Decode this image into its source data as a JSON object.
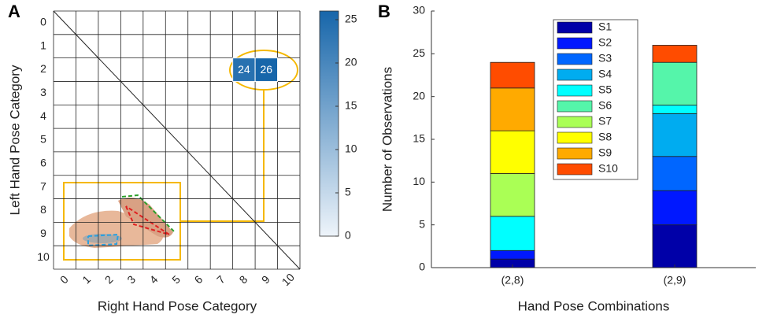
{
  "chart_data": [
    {
      "type": "heatmap",
      "panel_label": "A",
      "x_label": "Right Hand Pose Category",
      "y_label": "Left Hand Pose Category",
      "x": [
        8,
        9
      ],
      "y": [
        2,
        2
      ],
      "values": [
        24,
        26
      ],
      "xlim": [
        -0.5,
        10.5
      ],
      "ylim": [
        10.5,
        -0.5
      ],
      "xticks": [
        0,
        1,
        2,
        3,
        4,
        5,
        6,
        7,
        8,
        9,
        10
      ],
      "yticks": [
        0,
        1,
        2,
        3,
        4,
        5,
        6,
        7,
        8,
        9,
        10
      ],
      "clim": [
        0,
        26
      ],
      "cticks": [
        0,
        5,
        10,
        15,
        20,
        25
      ],
      "cmap": [
        "#eef4fa",
        "#1766aa"
      ]
    },
    {
      "type": "stacked_bar",
      "panel_label": "B",
      "x_label": "Hand Pose Combinations",
      "y_label": "Number of Observations",
      "categories": [
        "(2,8)",
        "(2,9)"
      ],
      "ylim": [
        0,
        30
      ],
      "yticks": [
        0,
        5,
        10,
        15,
        20,
        25,
        30
      ],
      "series": [
        {
          "name": "S1",
          "color": "#0000a8",
          "values": [
            1,
            5
          ]
        },
        {
          "name": "S2",
          "color": "#0018ff",
          "values": [
            1,
            4
          ]
        },
        {
          "name": "S3",
          "color": "#0066ff",
          "values": [
            0,
            4
          ]
        },
        {
          "name": "S4",
          "color": "#00acf0",
          "values": [
            0,
            5
          ]
        },
        {
          "name": "S5",
          "color": "#00ffff",
          "values": [
            4,
            1
          ]
        },
        {
          "name": "S6",
          "color": "#55f5aa",
          "values": [
            0,
            5
          ]
        },
        {
          "name": "S7",
          "color": "#aaff55",
          "values": [
            5,
            0
          ]
        },
        {
          "name": "S8",
          "color": "#ffff00",
          "values": [
            5,
            0
          ]
        },
        {
          "name": "S9",
          "color": "#ffaa00",
          "values": [
            5,
            0
          ]
        },
        {
          "name": "S10",
          "color": "#ff4c00",
          "values": [
            3,
            2
          ]
        }
      ]
    }
  ]
}
